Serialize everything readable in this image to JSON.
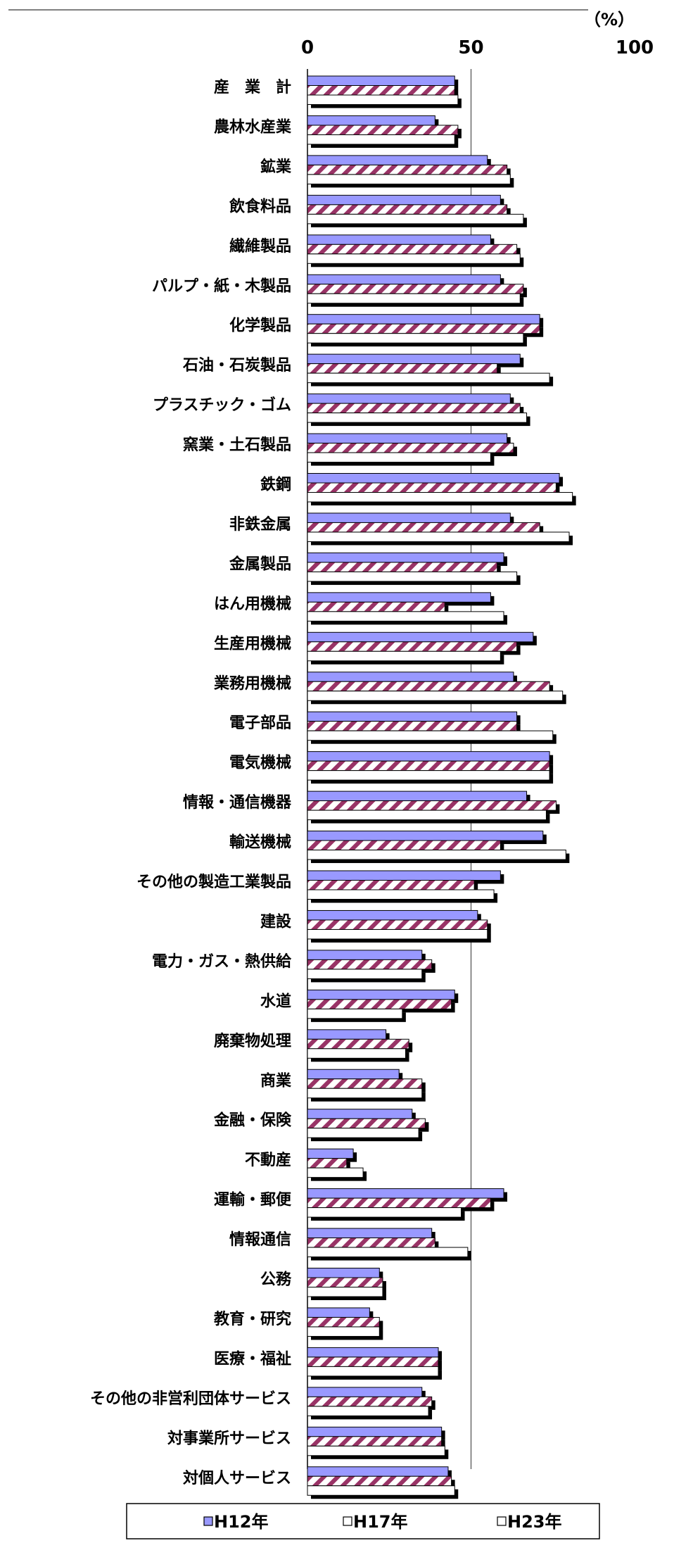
{
  "chart_data": {
    "type": "bar",
    "orientation": "horizontal",
    "unit_label": "（%）",
    "xlim": [
      0,
      100
    ],
    "x_ticks": [
      "0",
      "50",
      "100"
    ],
    "grid": "vertical line at 50",
    "legend_position": "bottom",
    "categories": [
      "産　業　計",
      "農林水産業",
      "鉱業",
      "飲食料品",
      "繊維製品",
      "パルプ・紙・木製品",
      "化学製品",
      "石油・石炭製品",
      "プラスチック・ゴム",
      "窯業・土石製品",
      "鉄鋼",
      "非鉄金属",
      "金属製品",
      "はん用機械",
      "生産用機械",
      "業務用機械",
      "電子部品",
      "電気機械",
      "情報・通信機器",
      "輸送機械",
      "その他の製造工業製品",
      "建設",
      "電力・ガス・熱供給",
      "水道",
      "廃棄物処理",
      "商業",
      "金融・保険",
      "不動産",
      "運輸・郵便",
      "情報通信",
      "公務",
      "教育・研究",
      "医療・福祉",
      "その他の非営利団体サービス",
      "対事業所サービス",
      "対個人サービス"
    ],
    "series": [
      {
        "name": "H12年",
        "color": "#9999ff",
        "values": [
          45,
          39,
          55,
          59,
          56,
          59,
          71,
          65,
          62,
          61,
          77,
          62,
          60,
          56,
          69,
          63,
          64,
          74,
          67,
          72,
          59,
          52,
          35,
          45,
          24,
          28,
          32,
          14,
          60,
          38,
          22,
          19,
          40,
          35,
          41,
          43
        ]
      },
      {
        "name": "H17年",
        "color": "#993366",
        "values": [
          45,
          46,
          61,
          61,
          64,
          66,
          71,
          58,
          65,
          63,
          76,
          71,
          58,
          42,
          64,
          74,
          64,
          74,
          76,
          59,
          51,
          55,
          38,
          44,
          31,
          35,
          36,
          12,
          56,
          39,
          23,
          22,
          40,
          38,
          41,
          44
        ]
      },
      {
        "name": "H23年",
        "color": "#ffffff",
        "values": [
          46,
          45,
          62,
          66,
          65,
          65,
          66,
          74,
          67,
          56,
          81,
          80,
          64,
          60,
          59,
          78,
          75,
          74,
          73,
          79,
          57,
          55,
          35,
          29,
          30,
          35,
          34,
          17,
          47,
          49,
          23,
          22,
          40,
          37,
          42,
          45
        ]
      }
    ]
  }
}
